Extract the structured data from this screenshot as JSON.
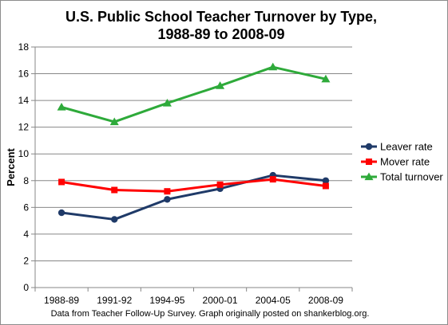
{
  "chart_data": {
    "type": "line",
    "title_line1": "U.S. Public School Teacher Turnover by Type,",
    "title_line2": "1988-89 to 2008-09",
    "xlabel": "",
    "ylabel": "Percent",
    "ylim": [
      0,
      18
    ],
    "yticks": [
      0,
      2,
      4,
      6,
      8,
      10,
      12,
      14,
      16,
      18
    ],
    "categories": [
      "1988-89",
      "1991-92",
      "1994-95",
      "2000-01",
      "2004-05",
      "2008-09"
    ],
    "grid": "horizontal",
    "legend_position": "right",
    "series": [
      {
        "name": "Leaver rate",
        "color": "#1f3a68",
        "marker": "circle",
        "values": [
          5.6,
          5.1,
          6.6,
          7.4,
          8.4,
          8.0
        ]
      },
      {
        "name": "Mover rate",
        "color": "#ff0000",
        "marker": "square",
        "values": [
          7.9,
          7.3,
          7.2,
          7.7,
          8.1,
          7.6
        ]
      },
      {
        "name": "Total turnover",
        "color": "#2eaa3a",
        "marker": "triangle",
        "values": [
          13.5,
          12.4,
          13.8,
          15.1,
          16.5,
          15.6
        ]
      }
    ]
  },
  "source_note": "Data from Teacher Follow-Up Survey.  Graph originally posted on shankerblog.org."
}
